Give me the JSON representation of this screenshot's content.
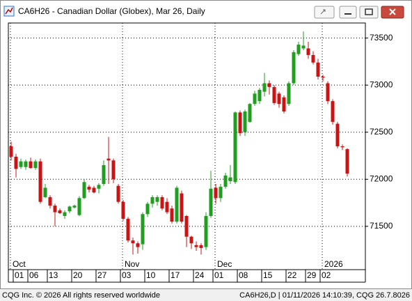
{
  "window_title": "CA6H26 - Canadian Dollar (Globex), Mar 26, Daily",
  "chart_data": {
    "type": "candlestick",
    "up_color": "#1f9e1f",
    "down_color": "#c81414",
    "ylim": [
      71040,
      73660
    ],
    "yticks": [
      71500,
      72000,
      72500,
      73000,
      73500
    ],
    "grid": true,
    "categories": [
      null,
      "01",
      null,
      null,
      "06",
      null,
      null,
      null,
      "13",
      null,
      null,
      null,
      null,
      "20",
      null,
      null,
      null,
      null,
      "27",
      null,
      null,
      null,
      null,
      "03",
      null,
      null,
      null,
      null,
      "10",
      null,
      null,
      null,
      null,
      "17",
      null,
      null,
      null,
      null,
      "24",
      null,
      null,
      null,
      "01",
      null,
      null,
      null,
      null,
      "08",
      null,
      null,
      null,
      null,
      "15",
      null,
      null,
      null,
      null,
      "22",
      null,
      null,
      null,
      "29",
      null,
      null,
      "02",
      null,
      null,
      null,
      null,
      null
    ],
    "month_labels": [
      "Oct",
      null,
      null,
      null,
      null,
      null,
      null,
      null,
      null,
      null,
      null,
      null,
      null,
      null,
      null,
      null,
      null,
      null,
      null,
      null,
      null,
      null,
      null,
      "Nov",
      null,
      null,
      null,
      null,
      null,
      null,
      null,
      null,
      null,
      null,
      null,
      null,
      null,
      null,
      null,
      null,
      null,
      null,
      "Dec",
      null,
      null,
      null,
      null,
      null,
      null,
      null,
      null,
      null,
      null,
      null,
      null,
      null,
      null,
      null,
      null,
      null,
      null,
      null,
      null,
      null,
      "2026",
      null,
      null,
      null,
      null,
      null
    ],
    "open": [
      72350,
      72240,
      72130,
      72130,
      72190,
      72120,
      72190,
      71810,
      71810,
      71720,
      71670,
      71610,
      71660,
      71700,
      71620,
      71800,
      71920,
      71910,
      71900,
      71950,
      72220,
      72200,
      71930,
      71760,
      71580,
      71350,
      71320,
      71310,
      71630,
      71740,
      71760,
      71810,
      71760,
      71690,
      71550,
      71850,
      71610,
      71390,
      71300,
      71300,
      71280,
      71610,
      71910,
      71800,
      71920,
      71980,
      71970,
      72710,
      72500,
      72610,
      72800,
      72830,
      72930,
      73020,
      72980,
      72910,
      72870,
      72800,
      73020,
      73330,
      73390,
      73390,
      73320,
      73240,
      73090,
      73020,
      72830,
      72590,
      72350,
      72320
    ],
    "high": [
      72400,
      72270,
      72220,
      72210,
      72230,
      72210,
      72220,
      71950,
      71830,
      71740,
      71690,
      71670,
      71720,
      71730,
      71820,
      72000,
      71940,
      71930,
      71960,
      72200,
      72450,
      72220,
      71950,
      71780,
      71600,
      71380,
      71340,
      71650,
      71760,
      71830,
      71830,
      71830,
      71800,
      71720,
      71930,
      71880,
      71620,
      71400,
      71340,
      71320,
      71650,
      72090,
      71950,
      71950,
      72070,
      72150,
      72720,
      72730,
      72740,
      72810,
      72940,
      72970,
      73130,
      73050,
      73000,
      72930,
      72890,
      73040,
      73370,
      73460,
      73570,
      73460,
      73360,
      73280,
      73110,
      73040,
      72850,
      72610,
      72370,
      72330
    ],
    "low": [
      72200,
      72020,
      72110,
      72100,
      72110,
      72100,
      71740,
      71800,
      71690,
      71500,
      71630,
      71580,
      71640,
      71690,
      71610,
      71790,
      71860,
      71850,
      71850,
      71930,
      71950,
      71960,
      71740,
      71560,
      71330,
      71200,
      71210,
      71250,
      71600,
      71700,
      71720,
      71670,
      71630,
      71530,
      71530,
      71530,
      71280,
      71260,
      71240,
      71200,
      71250,
      71590,
      71740,
      71760,
      71900,
      71950,
      71950,
      72460,
      72460,
      72600,
      72780,
      72800,
      72880,
      72900,
      72790,
      72760,
      72700,
      72780,
      73000,
      73310,
      73370,
      73280,
      73220,
      73060,
      73040,
      72800,
      72580,
      72330,
      72310,
      72030
    ],
    "close": [
      72240,
      72110,
      72190,
      72190,
      72120,
      72190,
      71760,
      71910,
      71720,
      71650,
      71640,
      71650,
      71710,
      71720,
      71800,
      71970,
      71890,
      71860,
      71940,
      72150,
      72200,
      72000,
      71760,
      71580,
      71350,
      71320,
      71280,
      71630,
      71740,
      71810,
      71810,
      71690,
      71650,
      71550,
      71910,
      71550,
      71390,
      71320,
      71280,
      71270,
      71610,
      71900,
      71800,
      71920,
      72040,
      72020,
      72710,
      72490,
      72720,
      72800,
      72910,
      72950,
      73020,
      72980,
      72810,
      72800,
      72720,
      73020,
      73350,
      73430,
      73420,
      73320,
      73240,
      73090,
      73080,
      72830,
      72610,
      72350,
      72340,
      72060
    ]
  },
  "footer": {
    "left": "CQG Inc. © 2026 All rights reserved worldwide",
    "right": "CA6H26,D | 01/11/2026 14:10:39, CQG 26.7.8026"
  }
}
